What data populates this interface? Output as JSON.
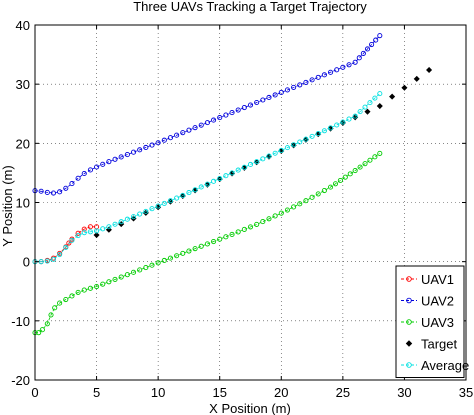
{
  "chart_data": {
    "type": "scatter",
    "title": "Three UAVs Tracking a Target Trajectory",
    "xlabel": "X Position (m)",
    "ylabel": "Y Position (m)",
    "xlim": [
      0,
      35
    ],
    "ylim": [
      -20,
      40
    ],
    "xticks": [
      "0",
      "5",
      "10",
      "15",
      "20",
      "25",
      "30",
      "35"
    ],
    "yticks": [
      "-20",
      "-10",
      "0",
      "10",
      "20",
      "30",
      "40"
    ],
    "grid": true,
    "legend_position": "bottom-right",
    "series": [
      {
        "name": "UAV1",
        "color": "#ff0000",
        "marker": "circle",
        "line": "dashed",
        "points": [
          [
            0,
            0
          ],
          [
            0.5,
            0
          ],
          [
            1,
            0.2
          ],
          [
            1.5,
            0.6
          ],
          [
            2,
            1.4
          ],
          [
            2.5,
            2.5
          ],
          [
            3,
            3.8
          ],
          [
            3.5,
            4.8
          ],
          [
            4,
            5.5
          ],
          [
            4.5,
            5.9
          ],
          [
            5,
            5.9
          ]
        ]
      },
      {
        "name": "UAV2",
        "color": "#0000dd",
        "marker": "circle",
        "line": "dashed",
        "points": [
          [
            0,
            12
          ],
          [
            0.5,
            11.9
          ],
          [
            1,
            11.7
          ],
          [
            1.5,
            11.6
          ],
          [
            2,
            11.8
          ],
          [
            2.5,
            12.4
          ],
          [
            3,
            13.2
          ],
          [
            3.5,
            14.1
          ],
          [
            4,
            14.9
          ],
          [
            4.5,
            15.5
          ],
          [
            5,
            16
          ],
          [
            6,
            16.9
          ],
          [
            7,
            17.7
          ],
          [
            8,
            18.5
          ],
          [
            9,
            19.3
          ],
          [
            10,
            20.1
          ],
          [
            12,
            21.8
          ],
          [
            14,
            23.5
          ],
          [
            16,
            25.2
          ],
          [
            18,
            26.9
          ],
          [
            20,
            28.6
          ],
          [
            22,
            30.3
          ],
          [
            24,
            32
          ],
          [
            26,
            33.7
          ],
          [
            28,
            38.2
          ]
        ]
      },
      {
        "name": "UAV3",
        "color": "#00cc00",
        "marker": "circle",
        "line": "dashed",
        "points": [
          [
            0,
            -12
          ],
          [
            0.3,
            -12
          ],
          [
            0.6,
            -11.5
          ],
          [
            1,
            -10.5
          ],
          [
            1.3,
            -9
          ],
          [
            1.6,
            -7.8
          ],
          [
            2,
            -7
          ],
          [
            2.5,
            -6.4
          ],
          [
            3,
            -5.8
          ],
          [
            3.5,
            -5.2
          ],
          [
            4,
            -4.8
          ],
          [
            5,
            -4.2
          ],
          [
            6,
            -3.4
          ],
          [
            7,
            -2.6
          ],
          [
            8,
            -1.8
          ],
          [
            9,
            -1
          ],
          [
            10,
            -0.2
          ],
          [
            12,
            1.4
          ],
          [
            14,
            3
          ],
          [
            16,
            4.6
          ],
          [
            18,
            6.3
          ],
          [
            20,
            8.2
          ],
          [
            22,
            10.3
          ],
          [
            24,
            12.6
          ],
          [
            26,
            15.4
          ],
          [
            28,
            18.3
          ]
        ]
      },
      {
        "name": "Target",
        "color": "#000000",
        "marker": "diamond",
        "line": "none",
        "points": [
          [
            5,
            4.5
          ],
          [
            6,
            5.4
          ],
          [
            8,
            7.3
          ],
          [
            10,
            9.2
          ],
          [
            12,
            11.1
          ],
          [
            14,
            13
          ],
          [
            16,
            14.9
          ],
          [
            18,
            16.8
          ],
          [
            20,
            18.7
          ],
          [
            22,
            20.6
          ],
          [
            24,
            22.5
          ],
          [
            26,
            24.4
          ],
          [
            28,
            26.3
          ],
          [
            29,
            27.9
          ],
          [
            30,
            29.4
          ],
          [
            31,
            30.9
          ],
          [
            32,
            32.4
          ]
        ]
      },
      {
        "name": "Average",
        "color": "#00e0e0",
        "marker": "circle",
        "line": "dashed",
        "points": [
          [
            0,
            0
          ],
          [
            0.5,
            0
          ],
          [
            1,
            0.1
          ],
          [
            1.5,
            0.4
          ],
          [
            2,
            1.2
          ],
          [
            2.5,
            2.4
          ],
          [
            3,
            3.6
          ],
          [
            3.5,
            4.4
          ],
          [
            4,
            4.9
          ],
          [
            5,
            5.2
          ],
          [
            6,
            5.9
          ],
          [
            8,
            7.6
          ],
          [
            10,
            9.4
          ],
          [
            12,
            11.2
          ],
          [
            14,
            13.1
          ],
          [
            16,
            15
          ],
          [
            18,
            16.9
          ],
          [
            20,
            18.8
          ],
          [
            22,
            20.7
          ],
          [
            24,
            22.6
          ],
          [
            26,
            24.6
          ],
          [
            28,
            28.4
          ]
        ]
      }
    ]
  }
}
